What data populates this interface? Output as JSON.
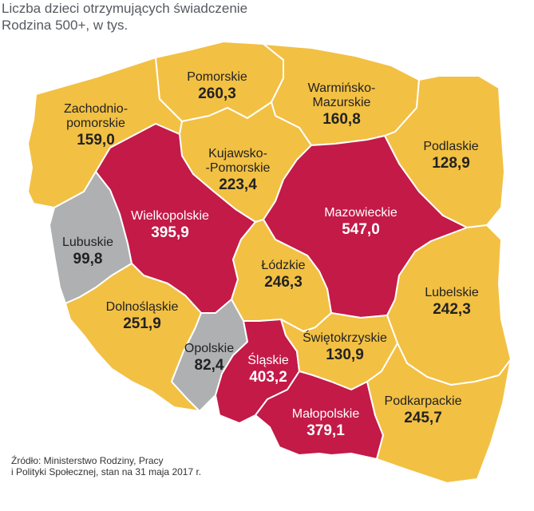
{
  "title": [
    "Liczba dzieci otrzymujących świadczenie",
    "Rodzina 500+, w tys."
  ],
  "source": [
    "Źródło: Ministerstwo Rodziny, Pracy",
    "i Polityki Społecznej, stan na 31 maja 2017 r."
  ],
  "colors": {
    "yellow": "#f2c043",
    "crimson": "#c31a48",
    "gray": "#aeb0b2",
    "border": "#ffffff"
  },
  "regions": [
    {
      "name": [
        "Zachodnio-",
        "pomorskie"
      ],
      "value": "159,0",
      "fill": "yellow"
    },
    {
      "name": [
        "Pomorskie"
      ],
      "value": "260,3",
      "fill": "yellow"
    },
    {
      "name": [
        "Warmińsko-",
        "Mazurskie"
      ],
      "value": "160,8",
      "fill": "yellow"
    },
    {
      "name": [
        "Podlaskie"
      ],
      "value": "128,9",
      "fill": "yellow"
    },
    {
      "name": [
        "Kujawsko-",
        "-Pomorskie"
      ],
      "value": "223,4",
      "fill": "yellow"
    },
    {
      "name": [
        "Lubuskie"
      ],
      "value": "99,8",
      "fill": "gray"
    },
    {
      "name": [
        "Wielkopolskie"
      ],
      "value": "395,9",
      "fill": "crimson"
    },
    {
      "name": [
        "Mazowieckie"
      ],
      "value": "547,0",
      "fill": "crimson"
    },
    {
      "name": [
        "Łódzkie"
      ],
      "value": "246,3",
      "fill": "yellow"
    },
    {
      "name": [
        "Lubelskie"
      ],
      "value": "242,3",
      "fill": "yellow"
    },
    {
      "name": [
        "Dolnośląskie"
      ],
      "value": "251,9",
      "fill": "yellow"
    },
    {
      "name": [
        "Opolskie"
      ],
      "value": "82,4",
      "fill": "gray"
    },
    {
      "name": [
        "Śląskie"
      ],
      "value": "403,2",
      "fill": "crimson"
    },
    {
      "name": [
        "Świętokrzyskie"
      ],
      "value": "130,9",
      "fill": "yellow"
    },
    {
      "name": [
        "Małopolskie"
      ],
      "value": "379,1",
      "fill": "crimson"
    },
    {
      "name": [
        "Podkarpackie"
      ],
      "value": "245,7",
      "fill": "yellow"
    }
  ]
}
